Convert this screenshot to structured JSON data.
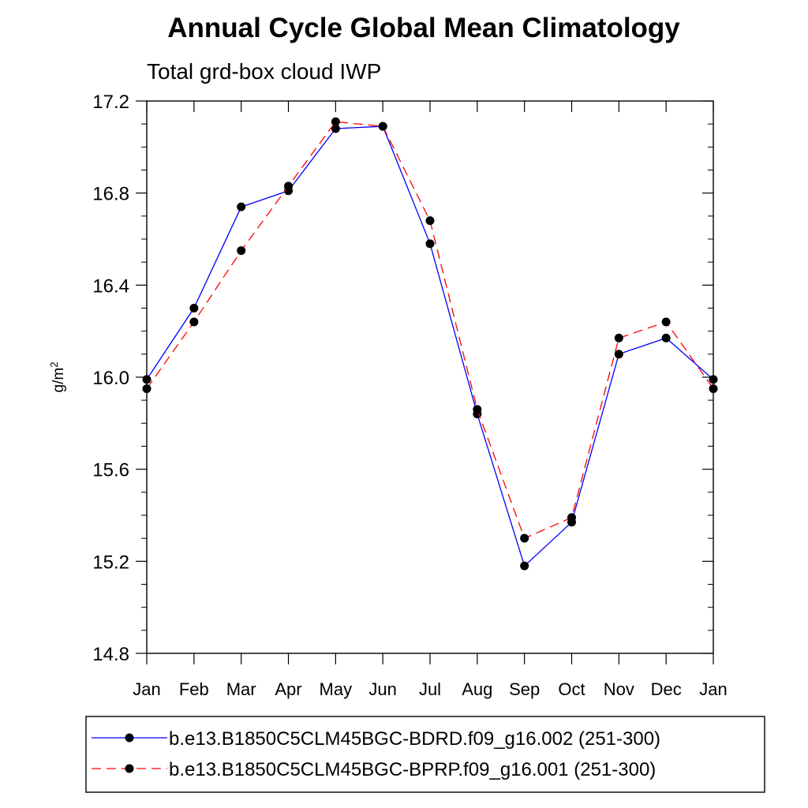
{
  "chart_data": {
    "type": "line",
    "title": "Annual Cycle Global Mean Climatology",
    "subtitle": "Total grd-box cloud IWP",
    "xlabel": "",
    "ylabel": "g/m",
    "ylabel_superscript": "2",
    "ylim": [
      14.8,
      17.2
    ],
    "yticks": [
      14.8,
      15.2,
      15.6,
      16.0,
      16.4,
      16.8,
      17.2
    ],
    "ytick_labels": [
      "14.8",
      "15.2",
      "15.6",
      "16.0",
      "16.4",
      "16.8",
      "17.2"
    ],
    "y_minor_step": 0.1,
    "categories": [
      "Jan",
      "Feb",
      "Mar",
      "Apr",
      "May",
      "Jun",
      "Jul",
      "Aug",
      "Sep",
      "Oct",
      "Nov",
      "Dec",
      "Jan"
    ],
    "grid": false,
    "legend_position": "bottom",
    "series": [
      {
        "name": "b.e13.B1850C5CLM45BGC-BDRD.f09_g16.002 (251-300)",
        "color": "#0000ff",
        "dash": "solid",
        "marker_color": "#000000",
        "values": [
          15.99,
          16.3,
          16.74,
          16.81,
          17.08,
          17.09,
          16.58,
          15.84,
          15.18,
          15.37,
          16.1,
          16.17,
          15.99
        ]
      },
      {
        "name": "b.e13.B1850C5CLM45BGC-BPRP.f09_g16.001 (251-300)",
        "color": "#ff0000",
        "dash": "dashed",
        "marker_color": "#000000",
        "values": [
          15.95,
          16.24,
          16.55,
          16.83,
          17.11,
          17.09,
          16.68,
          15.86,
          15.3,
          15.39,
          16.17,
          16.24,
          15.95
        ]
      }
    ]
  }
}
